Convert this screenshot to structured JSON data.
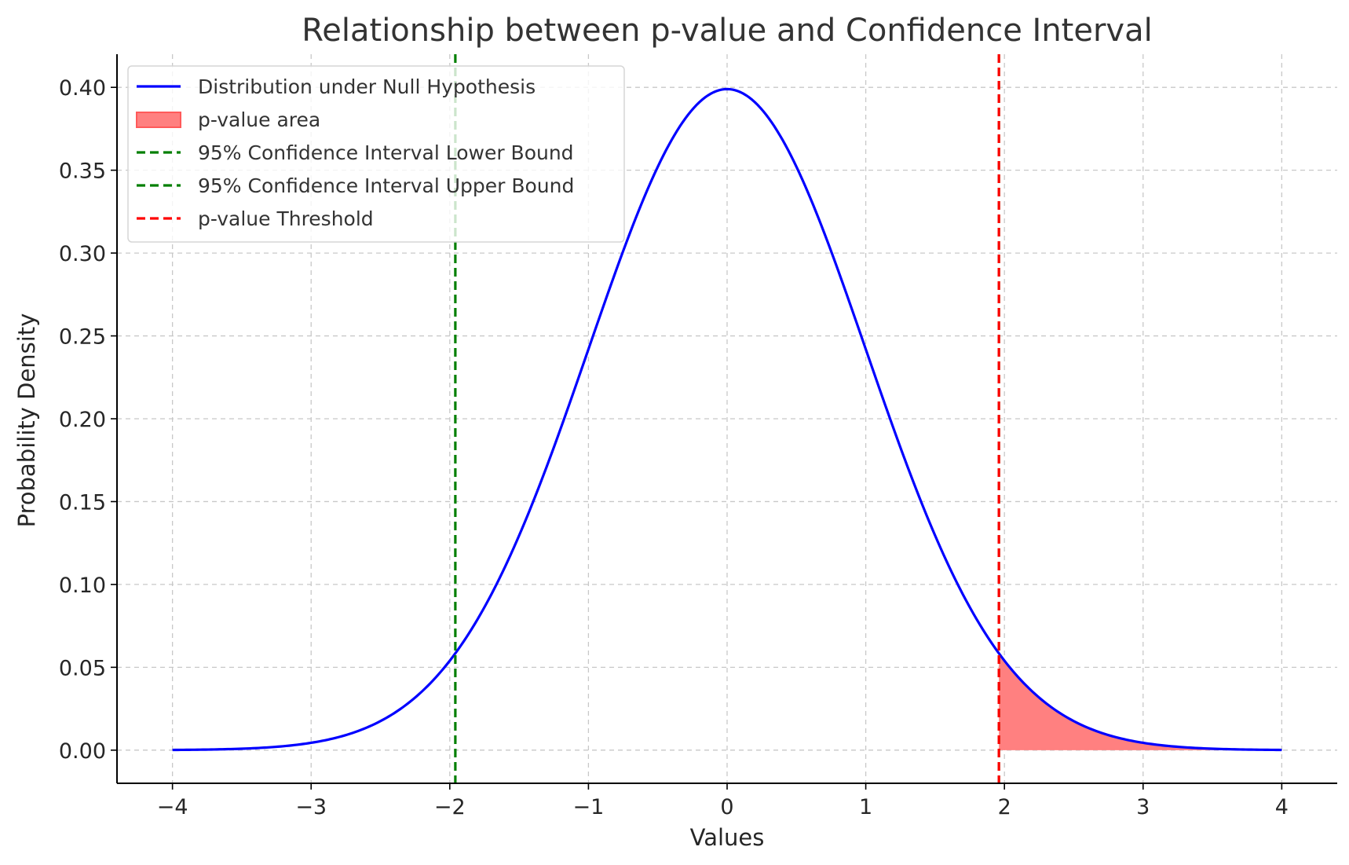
{
  "chart_data": {
    "type": "line",
    "title": "Relationship between p-value and Confidence Interval",
    "xlabel": "Values",
    "ylabel": "Probability Density",
    "xlim": [
      -4.4,
      4.4
    ],
    "ylim": [
      -0.02,
      0.42
    ],
    "x_ticks": [
      -4,
      -3,
      -2,
      -1,
      0,
      1,
      2,
      3,
      4
    ],
    "x_tick_labels": [
      "−4",
      "−3",
      "−2",
      "−1",
      "0",
      "1",
      "2",
      "3",
      "4"
    ],
    "y_ticks": [
      0.0,
      0.05,
      0.1,
      0.15,
      0.2,
      0.25,
      0.3,
      0.35,
      0.4
    ],
    "y_tick_labels": [
      "0.00",
      "0.05",
      "0.10",
      "0.15",
      "0.20",
      "0.25",
      "0.30",
      "0.35",
      "0.40"
    ],
    "grid": true,
    "legend_position": "top-left",
    "series": [
      {
        "name": "Distribution under Null Hypothesis",
        "kind": "line",
        "color": "#0000ff",
        "x": [
          -4.0,
          -3.75,
          -3.5,
          -3.25,
          -3.0,
          -2.75,
          -2.5,
          -2.25,
          -2.0,
          -1.75,
          -1.5,
          -1.25,
          -1.0,
          -0.75,
          -0.5,
          -0.25,
          0.0,
          0.25,
          0.5,
          0.75,
          1.0,
          1.25,
          1.5,
          1.75,
          2.0,
          2.25,
          2.5,
          2.75,
          3.0,
          3.25,
          3.5,
          3.75,
          4.0
        ],
        "y": [
          0.0001,
          0.0004,
          0.0009,
          0.002,
          0.0044,
          0.0091,
          0.0175,
          0.0317,
          0.054,
          0.0863,
          0.1295,
          0.1826,
          0.242,
          0.3011,
          0.3521,
          0.3867,
          0.3989,
          0.3867,
          0.3521,
          0.3011,
          0.242,
          0.1826,
          0.1295,
          0.0863,
          0.054,
          0.0317,
          0.0175,
          0.0091,
          0.0044,
          0.002,
          0.0009,
          0.0004,
          0.0001
        ]
      },
      {
        "name": "p-value area",
        "kind": "fill",
        "color": "#ff8080",
        "edge_color": "#ff5a5a",
        "x_from": 1.96,
        "x_to": 4.0
      },
      {
        "name": "95% Confidence Interval Lower Bound",
        "kind": "vline",
        "color": "#007f00",
        "x": -1.96
      },
      {
        "name": "95% Confidence Interval Upper Bound",
        "kind": "vline",
        "color": "#007f00",
        "x": 1.96
      },
      {
        "name": "p-value Threshold",
        "kind": "vline",
        "color": "#ff0000",
        "x": 1.96
      }
    ]
  }
}
